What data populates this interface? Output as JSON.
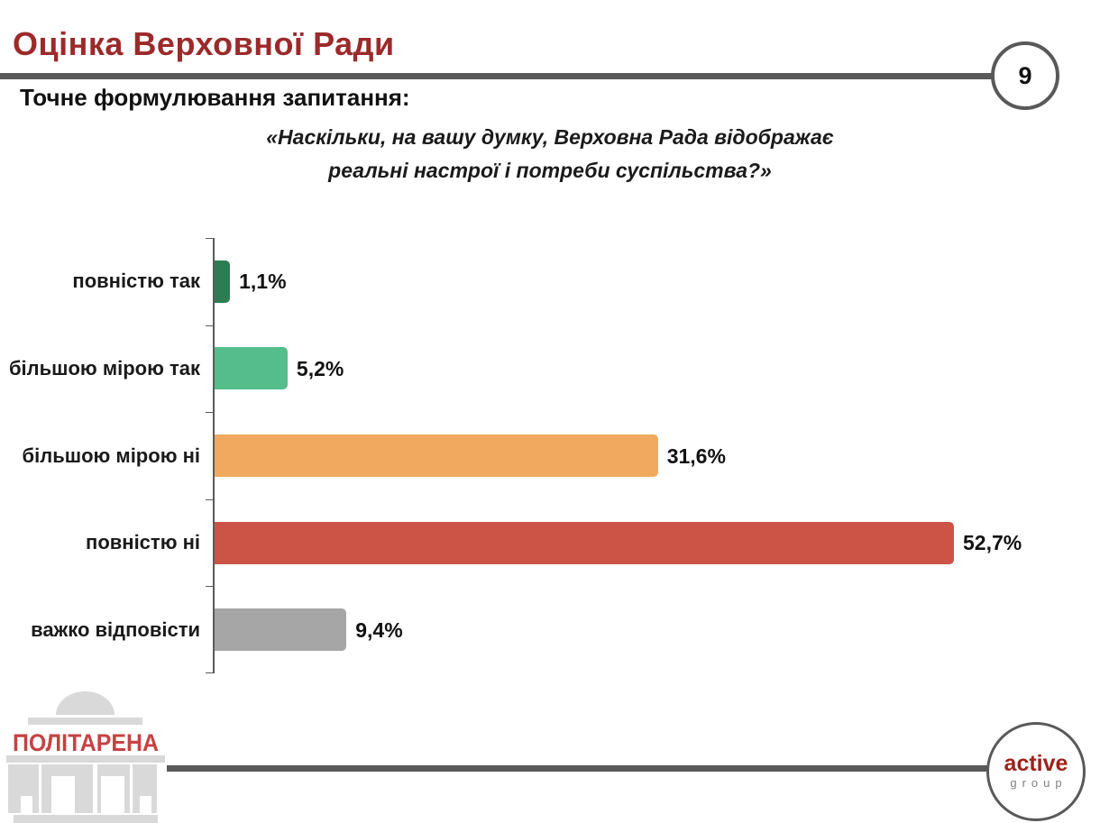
{
  "page": {
    "title": "Оцінка Верховної Ради",
    "page_number": "9",
    "question_intro": "Точне формулювання запитання:",
    "question_line1": "«Наскільки, на вашу думку, Верховна Рада відображає",
    "question_line2": "реальні настрої і потреби суспільства?»",
    "colors": {
      "title_red": "#9C2A2A",
      "rule_gray": "#595959",
      "politarena_red": "#C54343",
      "active_red": "#9C221B",
      "logo_gray": "#D9D9D9"
    }
  },
  "chart_data": {
    "type": "bar",
    "orientation": "horizontal",
    "title": "",
    "xlabel": "",
    "ylabel": "",
    "grid": false,
    "legend": "none",
    "xlim": [
      0,
      55
    ],
    "categories": [
      "повністю так",
      "більшою мірою так",
      "більшою мірою ні",
      "повністю ні",
      "важко відповісти"
    ],
    "values": [
      1.1,
      5.2,
      31.6,
      52.7,
      9.4
    ],
    "value_labels": [
      "1,1%",
      "5,2%",
      "31,6%",
      "52,7%",
      "9,4%"
    ],
    "bar_colors": [
      "#2E7D52",
      "#54BD8B",
      "#F0A95F",
      "#CC5447",
      "#A6A6A6"
    ]
  },
  "footer": {
    "left_logo_text": "ПОЛІТАРЕНА",
    "right_logo_line1": "active",
    "right_logo_line2": "group"
  }
}
